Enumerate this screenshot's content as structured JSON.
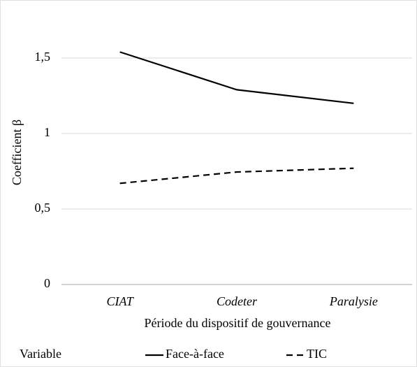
{
  "chart_data": {
    "type": "line",
    "x_label": "Période du dispositif de gouvernance",
    "y_label": "Coefficient β",
    "categories": [
      "CIAT",
      "Codeter",
      "Paralysie"
    ],
    "series": [
      {
        "name": "Face-à-face",
        "color": "#000000",
        "dash": "solid",
        "values": [
          1.54,
          1.29,
          1.2
        ]
      },
      {
        "name": "TIC",
        "color": "#000000",
        "dash": "dashed",
        "values": [
          0.67,
          0.745,
          0.77
        ]
      }
    ],
    "ylim": [
      0,
      1.75
    ],
    "yticks": [
      0,
      {
        "value": 0.5,
        "label": "0,5"
      },
      1,
      {
        "value": 1.5,
        "label": "1,5"
      }
    ],
    "grid": true,
    "legend_title": "Variable",
    "legend": "bottom"
  }
}
